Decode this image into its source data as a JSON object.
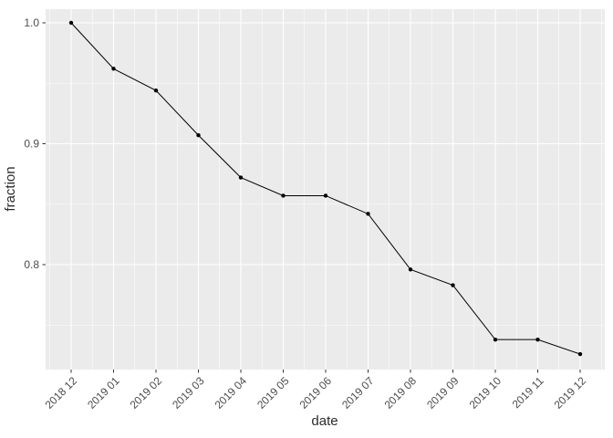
{
  "chart_data": {
    "type": "line",
    "title": "",
    "xlabel": "date",
    "ylabel": "fraction",
    "x": [
      "2018 12",
      "2019 01",
      "2019 02",
      "2019 03",
      "2019 04",
      "2019 05",
      "2019 06",
      "2019 07",
      "2019 08",
      "2019 09",
      "2019 10",
      "2019 11",
      "2019 12"
    ],
    "values": [
      1.0,
      0.962,
      0.944,
      0.907,
      0.872,
      0.857,
      0.857,
      0.842,
      0.796,
      0.783,
      0.738,
      0.738,
      0.726
    ],
    "ylim": [
      0.713,
      1.011
    ],
    "yticks": [
      1.0,
      0.9,
      0.8
    ],
    "ytick_labels": [
      "1.0",
      "0.9",
      "0.8"
    ],
    "yticks_minor": [
      0.95,
      0.85,
      0.75
    ],
    "x_labels_rotation_deg": 45,
    "grid": "major+minor",
    "legend": "none",
    "colors": {
      "panel_background": "#ebebeb",
      "grid": "#ffffff",
      "line": "#000000",
      "point": "#000000",
      "tick_mark": "#333333",
      "tick_label": "#4d4d4d",
      "axis_title": "#2b2b2b",
      "figure_background": "#ffffff"
    }
  }
}
